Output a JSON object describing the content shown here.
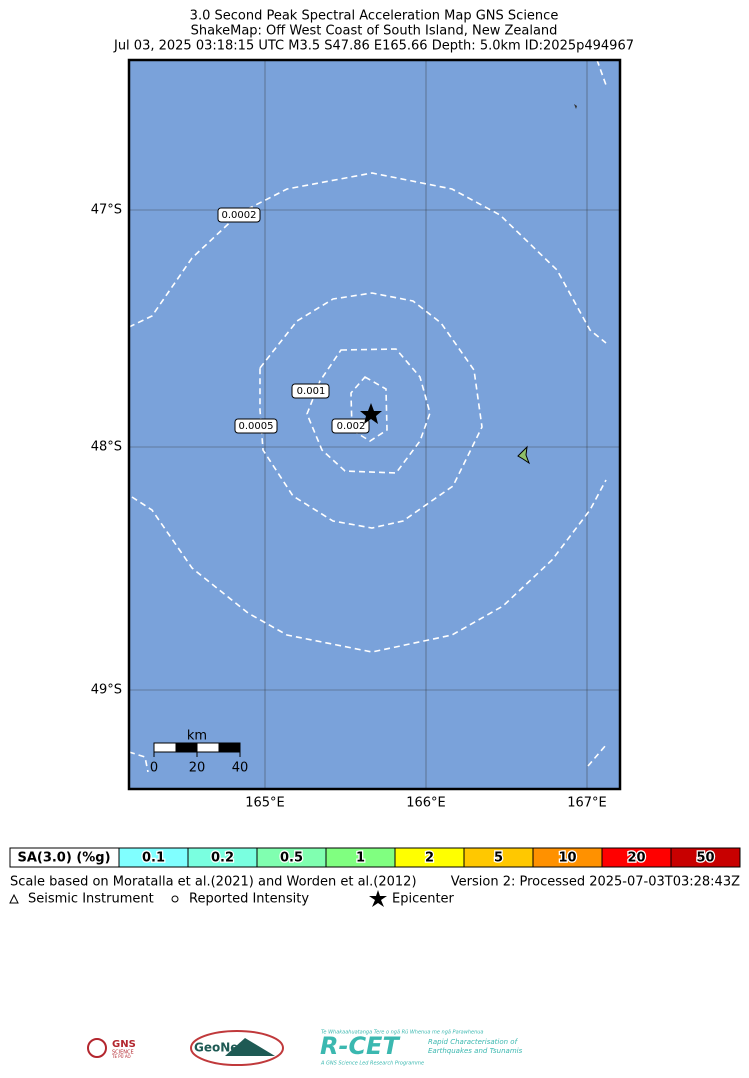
{
  "title": [
    "3.0 Second Peak Spectral Acceleration Map GNS Science",
    "ShakeMap: Off West Coast of South Island, New Zealand",
    "Jul 03, 2025 03:18:15 UTC M3.5 S47.86 E165.66 Depth: 5.0km ID:2025p494967"
  ],
  "map": {
    "lat_labels": [
      "47°S",
      "48°S",
      "49°S"
    ],
    "lon_labels": [
      "165°E",
      "166°E",
      "167°E"
    ],
    "contour_labels": [
      "0.0002",
      "0.001",
      "0.0005",
      "0.002"
    ],
    "scale_bar": {
      "unit": "km",
      "ticks": [
        "0",
        "20",
        "40"
      ]
    }
  },
  "legend": {
    "label": "SA(3.0) (%g)",
    "bins": [
      {
        "label": "0.1",
        "color": "#80ffff"
      },
      {
        "label": "0.2",
        "color": "#7affe0"
      },
      {
        "label": "0.5",
        "color": "#80ffb0"
      },
      {
        "label": "1",
        "color": "#80ff80"
      },
      {
        "label": "2",
        "color": "#ffff00"
      },
      {
        "label": "5",
        "color": "#ffc800"
      },
      {
        "label": "10",
        "color": "#ff9100"
      },
      {
        "label": "20",
        "color": "#ff0000"
      },
      {
        "label": "50",
        "color": "#c80000"
      }
    ]
  },
  "notes": [
    "Scale based on Moratalla et al.(2021) and Worden et al.(2012)",
    "Version 2: Processed 2025-07-03T03:28:43Z"
  ],
  "symbols": [
    "Seismic Instrument",
    "Reported Intensity",
    "Epicenter"
  ],
  "logos": {
    "gns": [
      "GNS",
      "SCIENCE",
      "TE PŪ AO"
    ],
    "geonet": "GeoNet",
    "rcet": [
      "Te Whakaahuatanga Tere o ngā Rū Whenua me ngā Parawhenua",
      "R-CET",
      "Rapid Characterisation of",
      "Earthquakes and Tsunamis",
      "A GNS Science Led Research Programme"
    ]
  }
}
